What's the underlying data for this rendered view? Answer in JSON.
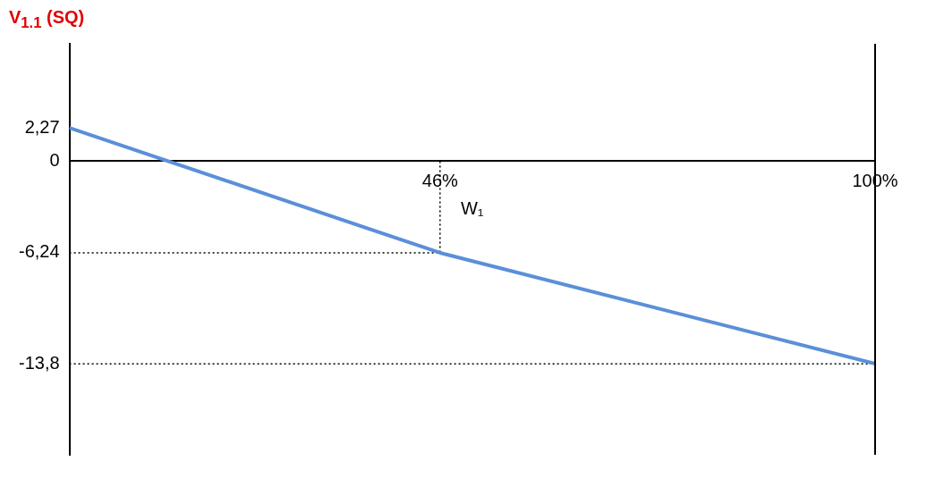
{
  "chart_data": {
    "type": "line",
    "ylabel": "V$_{1.1}$ (SQ)",
    "xlabel": "W₁",
    "x": [
      0,
      46,
      100
    ],
    "series": [
      {
        "color": "#5b8fd8",
        "values": [
          2.27,
          -6.24,
          -13.8
        ]
      },
      {
        "color": "#000000",
        "x": [
          0,
          46
        ],
        "values": [
          -6.24,
          -6.24
        ],
        "line_style": "dotted"
      },
      {
        "color": "#000000",
        "x": [
          46,
          46
        ],
        "values": [
          0,
          -6.24
        ],
        "line_style": "dotted"
      },
      {
        "color": "#000000",
        "x": [
          0,
          100
        ],
        "values": [
          -13.8,
          -13.8
        ],
        "line_style": "dotted"
      }
    ],
    "xlim": [
      0,
      100
    ],
    "ylim": [
      -20,
      8
    ],
    "xticks": [
      {
        "value": 46,
        "label": "46%"
      },
      {
        "value": 100,
        "label": "100%"
      }
    ],
    "yticks": [
      {
        "value": 2.27,
        "label": "2,27"
      },
      0,
      {
        "value": -6.24,
        "label": "-6,24"
      },
      {
        "value": -13.8,
        "label": "-13,8"
      }
    ],
    "grid": false,
    "legend": false,
    "marker": "none",
    "line_style": "solid"
  }
}
